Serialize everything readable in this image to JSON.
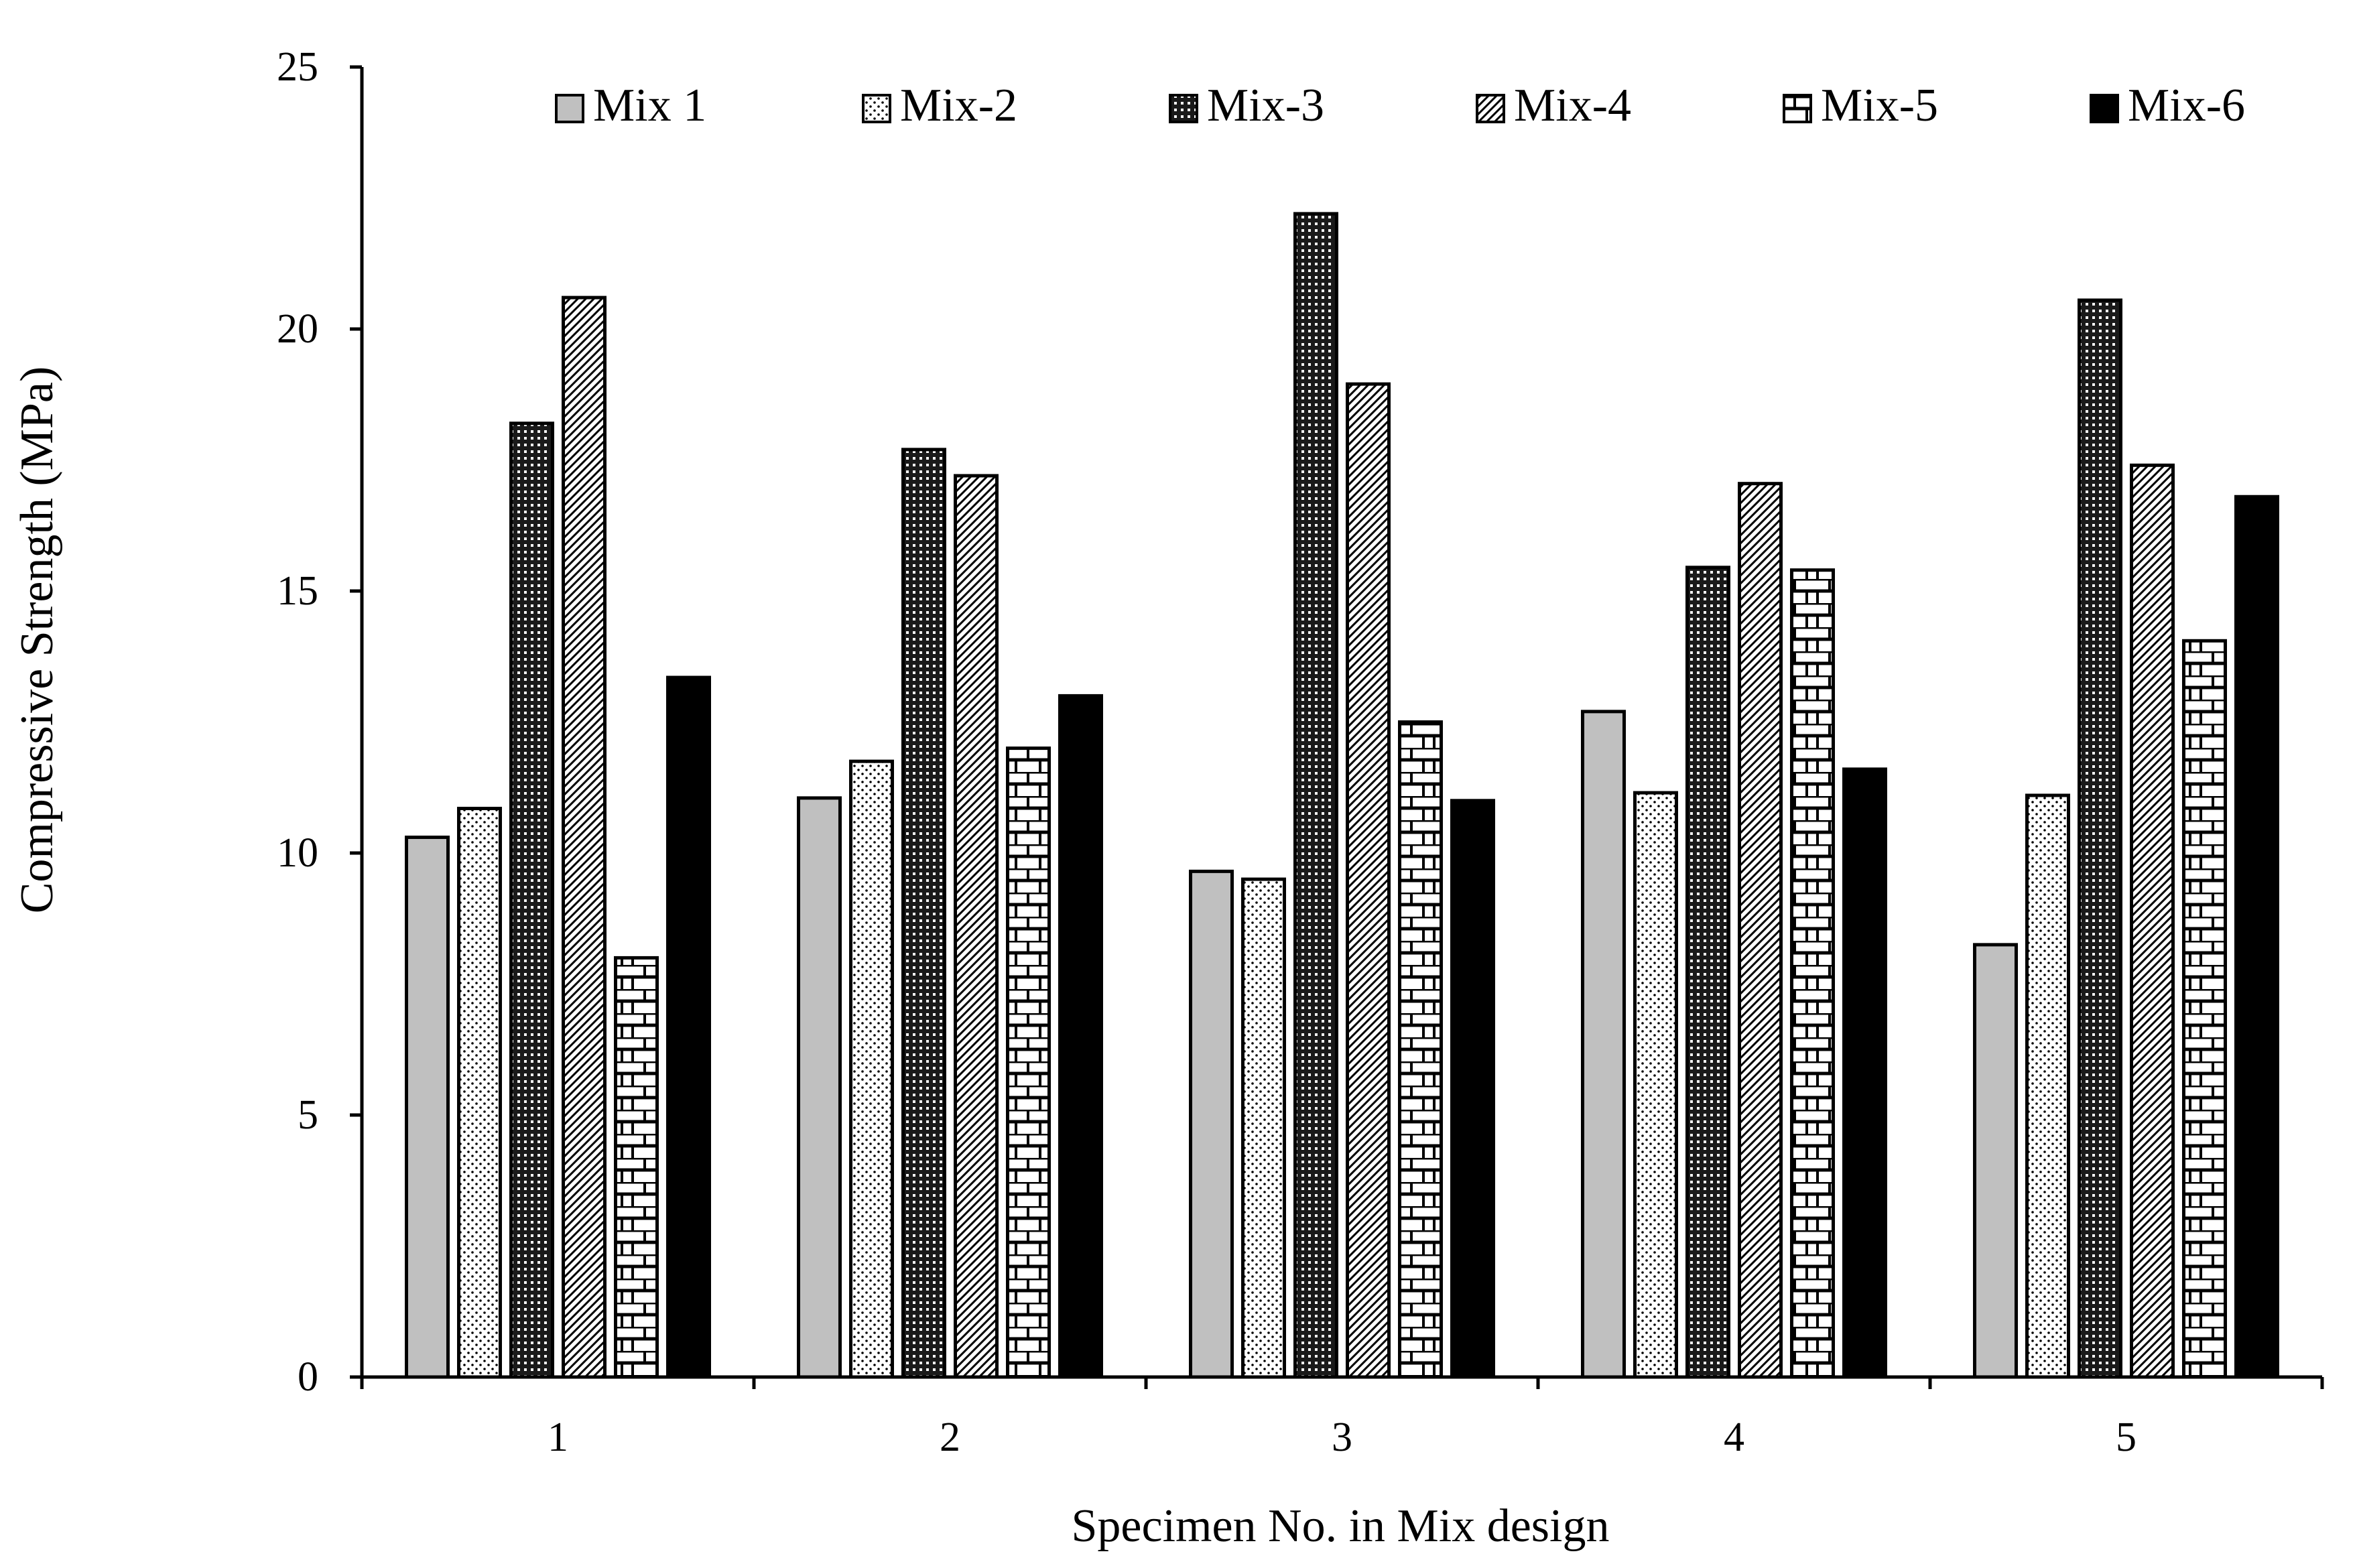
{
  "chart_data": {
    "type": "bar",
    "title": "",
    "xlabel": "Specimen No. in Mix design",
    "ylabel": "Compressive Strength (MPa)",
    "ylim": [
      0,
      25
    ],
    "yticks": [
      "0",
      "5",
      "10",
      "15",
      "20",
      "25"
    ],
    "categories": [
      "1",
      "2",
      "3",
      "4",
      "5"
    ],
    "legend_position": "top",
    "series": [
      {
        "name": "Mix 1",
        "values": [
          10.3,
          11.05,
          9.65,
          12.7,
          8.25
        ],
        "fill": "#c0c0c0",
        "pattern": "solid-gray"
      },
      {
        "name": "Mix-2",
        "values": [
          10.85,
          11.75,
          9.5,
          11.15,
          11.1
        ],
        "fill": "#ffffff",
        "pattern": "dots"
      },
      {
        "name": "Mix-3",
        "values": [
          18.2,
          17.7,
          22.2,
          15.45,
          20.55
        ],
        "fill": "#222222",
        "pattern": "dense-grid"
      },
      {
        "name": "Mix-4",
        "values": [
          20.6,
          17.2,
          18.95,
          17.05,
          17.4
        ],
        "fill": "#ffffff",
        "pattern": "diagonal"
      },
      {
        "name": "Mix-5",
        "values": [
          8.0,
          12.0,
          12.5,
          15.4,
          14.05
        ],
        "fill": "#ffffff",
        "pattern": "brick"
      },
      {
        "name": "Mix-6",
        "values": [
          13.35,
          13.0,
          11.0,
          11.6,
          16.8
        ],
        "fill": "#000000",
        "pattern": "solid-black"
      }
    ]
  }
}
